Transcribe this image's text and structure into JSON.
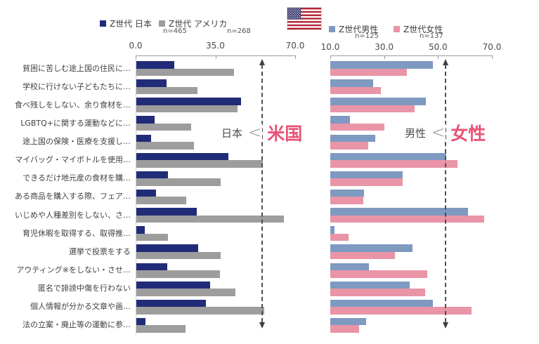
{
  "chart_data": [
    {
      "type": "bar",
      "orientation": "horizontal",
      "title": "",
      "legend_note": "left chart: Generation Z Japan vs USA",
      "categories": [
        "貧困に苦しむ途上国の住民に…",
        "学校に行けない子どもたちに…",
        "食べ残しをしない、余り食材を…",
        "LGBTQ+に関する運動などに…",
        "途上国の保険・医療を支援し…",
        "マイバッグ・マイボトルを使用…",
        "できるだけ地元産の食材を購…",
        "ある商品を購入する際、フェア…",
        "いじめや人種差別をしない、さ…",
        "育児休暇を取得する、取得推…",
        "選挙で投票をする",
        "アウティング※をしない・させ…",
        "匿名で誹謗中傷を行わない",
        "個人情報が分かる文章や画…",
        "法の立案・廃止等の運動に参…"
      ],
      "series": [
        {
          "key": "japan",
          "name": "Z世代 日本",
          "n": "n=465",
          "color": "#212c78",
          "values": [
            16.5,
            13.2,
            46.0,
            8.0,
            6.5,
            40.5,
            14.0,
            8.5,
            26.5,
            3.7,
            27.0,
            13.7,
            32.5,
            30.5,
            4.0
          ]
        },
        {
          "key": "usa",
          "name": "Z世代 アメリカ",
          "n": "n=268",
          "color": "#9d9d9d",
          "values": [
            42.8,
            26.8,
            44.3,
            24.2,
            25.3,
            55.4,
            37.1,
            21.9,
            64.9,
            14.0,
            37.1,
            36.6,
            43.5,
            56.1,
            21.7
          ]
        }
      ],
      "xlim": [
        0,
        70
      ],
      "ticks": [
        0,
        35,
        70
      ],
      "tick_labels": [
        "0.0",
        "35.0",
        "70.0"
      ],
      "grid": false,
      "legend_position": "top",
      "annotation": {
        "smaller": "日本",
        "symbol": "<",
        "larger": "米国",
        "larger_color": "#e85377",
        "arrow_x": 55.8
      }
    },
    {
      "type": "bar",
      "orientation": "horizontal",
      "title": "",
      "legend_note": "right chart: Generation Z male vs female (USA)",
      "categories": [
        "貧困に苦しむ途上国の住民に…",
        "学校に行けない子どもたちに…",
        "食べ残しをしない、余り食材を…",
        "LGBTQ+に関する運動などに…",
        "途上国の保険・医療を支援し…",
        "マイバッグ・マイボトルを使用…",
        "できるだけ地元産の食材を購…",
        "ある商品を購入する際、フェア…",
        "いじめや人種差別をしない、さ…",
        "育児休暇を取得する、取得推…",
        "選挙で投票をする",
        "アウティング※をしない・させ…",
        "匿名で誹謗中傷を行わない",
        "個人情報が分かる文章や画…",
        "法の立案・廃止等の運動に参…"
      ],
      "series": [
        {
          "key": "male",
          "name": "Z世代男性",
          "n": "n=125",
          "color": "#7f9ac1",
          "values": [
            48.2,
            25.9,
            45.4,
            17.4,
            26.7,
            53.0,
            36.9,
            22.6,
            61.0,
            11.5,
            40.4,
            24.3,
            39.5,
            48.0,
            23.3
          ]
        },
        {
          "key": "female",
          "name": "Z世代女性",
          "n": "n=137",
          "color": "#ea94a7",
          "values": [
            38.4,
            28.7,
            41.4,
            30.2,
            24.1,
            57.1,
            36.9,
            22.2,
            67.0,
            16.8,
            34.1,
            45.9,
            45.3,
            62.5,
            20.7
          ]
        }
      ],
      "xlim": [
        10,
        70
      ],
      "ticks": [
        10,
        30,
        50,
        70
      ],
      "tick_labels": [
        "10.0",
        "30.0",
        "50.0",
        "70.0"
      ],
      "grid": false,
      "legend_position": "top",
      "annotation": {
        "smaller": "男性",
        "symbol": "<",
        "larger": "女性",
        "larger_color": "#e85377",
        "arrow_x": 53.0
      }
    }
  ],
  "flag": {
    "name": "us-flag",
    "red": "#b22234",
    "blue": "#3c3b6e",
    "white": "#ffffff"
  }
}
